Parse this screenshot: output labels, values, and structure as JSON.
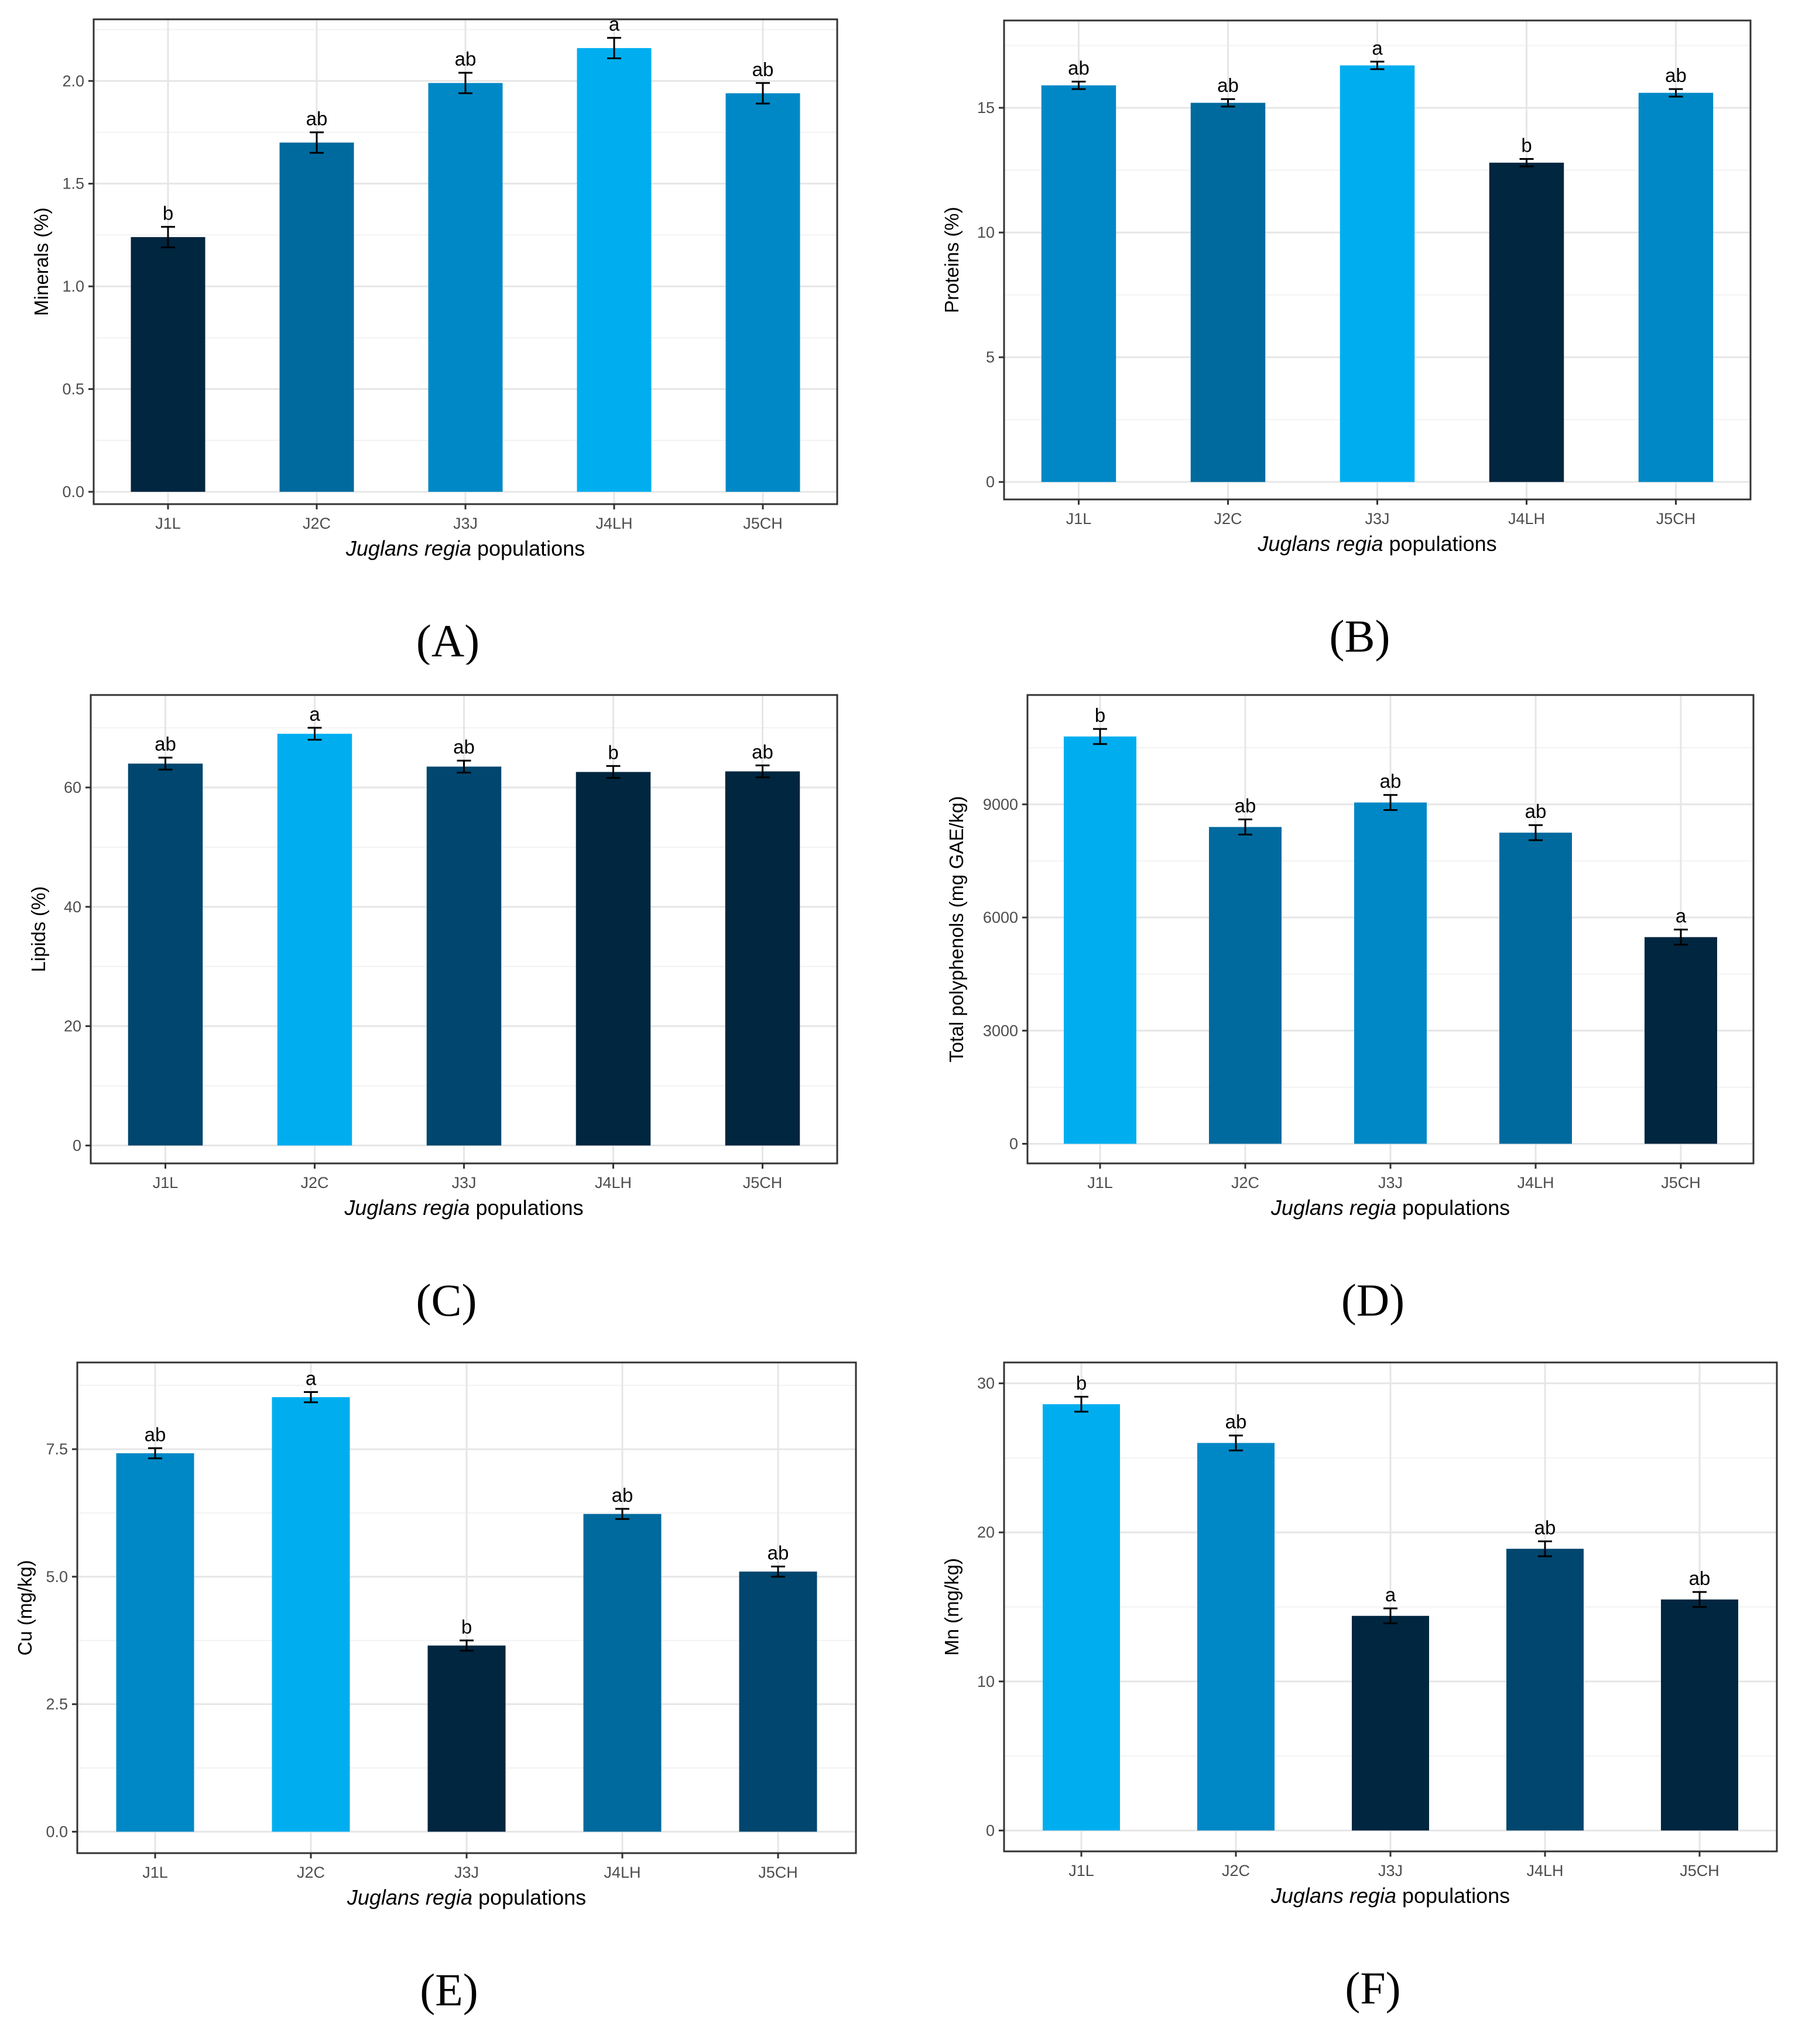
{
  "x_axis_title": {
    "italic": "Juglans regia",
    "rest": " populations"
  },
  "colors": [
    "#002640",
    "#00466e",
    "#006a9e",
    "#0088c6",
    "#00aef0"
  ],
  "chart_data": [
    {
      "type": "bar",
      "panel_label": "(A)",
      "ylabel": "Minerals (%)",
      "xlabel": "Juglans regia populations",
      "categories": [
        "J1L",
        "J2C",
        "J3J",
        "J4LH",
        "J5CH"
      ],
      "values": [
        1.24,
        1.7,
        1.99,
        2.16,
        1.94
      ],
      "errors": [
        0.05,
        0.05,
        0.05,
        0.05,
        0.05
      ],
      "letters": [
        "b",
        "ab",
        "ab",
        "a",
        "ab"
      ],
      "bar_colors": [
        "#002640",
        "#006a9e",
        "#0088c6",
        "#00aef0",
        "#0088c6"
      ],
      "ylim": [
        -0.06,
        2.3
      ],
      "yticks": [
        0.0,
        0.5,
        1.0,
        1.5,
        2.0
      ],
      "ytick_labels": [
        "0.0",
        "0.5",
        "1.0",
        "1.5",
        "2.0"
      ]
    },
    {
      "type": "bar",
      "panel_label": "(B)",
      "ylabel": "Proteins (%)",
      "xlabel": "Juglans regia populations",
      "categories": [
        "J1L",
        "J2C",
        "J3J",
        "J4LH",
        "J5CH"
      ],
      "values": [
        15.9,
        15.2,
        16.7,
        12.8,
        15.6
      ],
      "errors": [
        0.15,
        0.15,
        0.15,
        0.15,
        0.15
      ],
      "letters": [
        "ab",
        "ab",
        "a",
        "b",
        "ab"
      ],
      "bar_colors": [
        "#0088c6",
        "#006a9e",
        "#00aef0",
        "#002640",
        "#0088c6"
      ],
      "ylim": [
        -0.7,
        18.5
      ],
      "yticks": [
        0,
        5,
        10,
        15
      ],
      "ytick_labels": [
        "0",
        "5",
        "10",
        "15"
      ]
    },
    {
      "type": "bar",
      "panel_label": "(C)",
      "ylabel": "Lipids (%)",
      "xlabel": "Juglans regia populations",
      "categories": [
        "J1L",
        "J2C",
        "J3J",
        "J4LH",
        "J5CH"
      ],
      "values": [
        64.0,
        69.0,
        63.5,
        62.6,
        62.7
      ],
      "errors": [
        1.0,
        1.0,
        1.0,
        1.0,
        1.0
      ],
      "letters": [
        "ab",
        "a",
        "ab",
        "b",
        "ab"
      ],
      "bar_colors": [
        "#00466e",
        "#00aef0",
        "#00466e",
        "#002640",
        "#002640"
      ],
      "ylim": [
        -3,
        75.5
      ],
      "yticks": [
        0,
        20,
        40,
        60
      ],
      "ytick_labels": [
        "0",
        "20",
        "40",
        "60"
      ]
    },
    {
      "type": "bar",
      "panel_label": "(D)",
      "ylabel": "Total polyphenols (mg GAE/kg)",
      "xlabel": "Juglans regia populations",
      "categories": [
        "J1L",
        "J2C",
        "J3J",
        "J4LH",
        "J5CH"
      ],
      "values": [
        10800,
        8400,
        9050,
        8250,
        5480
      ],
      "errors": [
        200,
        200,
        200,
        200,
        200
      ],
      "letters": [
        "b",
        "ab",
        "ab",
        "ab",
        "a"
      ],
      "bar_colors": [
        "#00aef0",
        "#006a9e",
        "#0088c6",
        "#006a9e",
        "#002640"
      ],
      "ylim": [
        -520,
        11900
      ],
      "yticks": [
        0,
        3000,
        6000,
        9000
      ],
      "ytick_labels": [
        "0",
        "3000",
        "6000",
        "9000"
      ]
    },
    {
      "type": "bar",
      "panel_label": "(E)",
      "ylabel": "Cu (mg/kg)",
      "xlabel": "Juglans regia populations",
      "categories": [
        "J1L",
        "J2C",
        "J3J",
        "J4LH",
        "J5CH"
      ],
      "values": [
        7.42,
        8.52,
        3.65,
        6.23,
        5.1
      ],
      "errors": [
        0.1,
        0.1,
        0.1,
        0.1,
        0.1
      ],
      "letters": [
        "ab",
        "a",
        "b",
        "ab",
        "ab"
      ],
      "bar_colors": [
        "#0088c6",
        "#00aef0",
        "#002640",
        "#006a9e",
        "#00466e"
      ],
      "ylim": [
        -0.42,
        9.2
      ],
      "yticks": [
        0.0,
        2.5,
        5.0,
        7.5
      ],
      "ytick_labels": [
        "0.0",
        "2.5",
        "5.0",
        "7.5"
      ]
    },
    {
      "type": "bar",
      "panel_label": "(F)",
      "ylabel": "Mn (mg/kg)",
      "xlabel": "Juglans regia populations",
      "categories": [
        "J1L",
        "J2C",
        "J3J",
        "J4LH",
        "J5CH"
      ],
      "values": [
        28.6,
        26.0,
        14.4,
        18.9,
        15.5
      ],
      "errors": [
        0.5,
        0.5,
        0.5,
        0.5,
        0.5
      ],
      "letters": [
        "b",
        "ab",
        "a",
        "ab",
        "ab"
      ],
      "bar_colors": [
        "#00aef0",
        "#0088c6",
        "#002640",
        "#00466e",
        "#002640"
      ],
      "ylim": [
        -1.4,
        31.4
      ],
      "yticks": [
        0,
        10,
        20,
        30
      ],
      "ytick_labels": [
        "0",
        "10",
        "20",
        "30"
      ]
    }
  ]
}
